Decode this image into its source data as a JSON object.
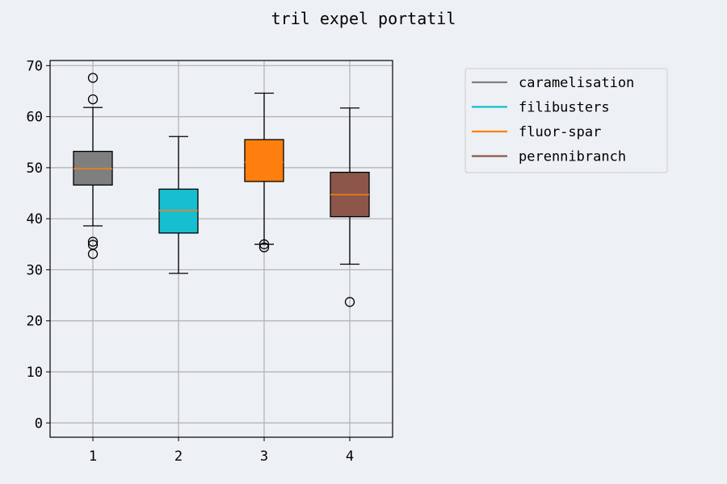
{
  "chart_data": {
    "type": "box",
    "title": "tril expel portatil",
    "xlabel": "",
    "ylabel": "",
    "categories": [
      "1",
      "2",
      "3",
      "4"
    ],
    "ylim": [
      -2.8,
      71
    ],
    "yticks": [
      0,
      10,
      20,
      30,
      40,
      50,
      60,
      70
    ],
    "grid": true,
    "legend_position": "right",
    "series": [
      {
        "name": "caramelisation",
        "color": "#7f7f7f",
        "q1": 46.6,
        "median": 49.8,
        "q3": 53.2,
        "whisker_low": 38.6,
        "whisker_high": 61.8,
        "outliers": [
          67.6,
          63.4,
          35.5,
          34.9,
          33.1
        ]
      },
      {
        "name": "filibusters",
        "color": "#17becf",
        "q1": 37.2,
        "median": 41.6,
        "q3": 45.8,
        "whisker_low": 29.3,
        "whisker_high": 56.1,
        "outliers": []
      },
      {
        "name": "fluor-spar",
        "color": "#ff7f0e",
        "q1": 47.3,
        "median": 51.1,
        "q3": 55.5,
        "whisker_low": 35.0,
        "whisker_high": 64.6,
        "outliers": [
          35.0,
          34.4
        ]
      },
      {
        "name": "perennibranch",
        "color": "#8c564b",
        "q1": 40.4,
        "median": 44.7,
        "q3": 49.1,
        "whisker_low": 31.1,
        "whisker_high": 61.7,
        "outliers": [
          23.7
        ]
      }
    ],
    "median_color": "#ff7f0e"
  }
}
